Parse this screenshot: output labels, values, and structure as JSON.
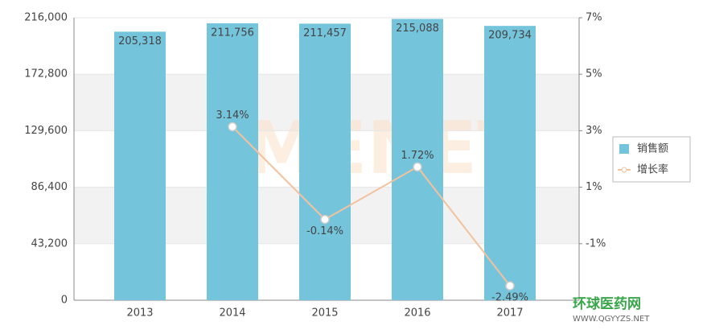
{
  "chart_data": {
    "type": "bar-line",
    "categories": [
      "2013",
      "2014",
      "2015",
      "2016",
      "2017"
    ],
    "series": [
      {
        "name": "销售额",
        "type": "bar",
        "color": "#74c4dc",
        "values": [
          205318,
          211756,
          211457,
          215088,
          209734
        ],
        "value_labels": [
          "205,318",
          "211,756",
          "211,457",
          "215,088",
          "209,734"
        ]
      },
      {
        "name": "增长率",
        "type": "line",
        "axis": "y2",
        "color": "#f3c29c",
        "values": [
          null,
          3.14,
          -0.14,
          1.72,
          -2.49
        ],
        "value_labels": [
          null,
          "3.14%",
          "-0.14%",
          "1.72%",
          "-2.49%"
        ]
      }
    ],
    "ylim": [
      0,
      216000
    ],
    "yticks": [
      0,
      {
        "value": 43200,
        "label": "43,200"
      },
      {
        "value": 86400,
        "label": "86,400"
      },
      {
        "value": 129600,
        "label": "129,600"
      },
      {
        "value": 172800,
        "label": "172,800"
      },
      {
        "value": 216000,
        "label": "216,000"
      }
    ],
    "y2lim": [
      -3,
      7
    ],
    "y2ticks": [
      {
        "value": -1,
        "label": "-1%"
      },
      {
        "value": 1,
        "label": "1%"
      },
      {
        "value": 3,
        "label": "3%"
      },
      {
        "value": 5,
        "label": "5%"
      },
      {
        "value": 7,
        "label": "7%"
      }
    ],
    "grid": true,
    "legend": "right",
    "watermarks": [
      "MENET",
      "环球医药网",
      "WWW.QGYYZS.NET"
    ]
  }
}
